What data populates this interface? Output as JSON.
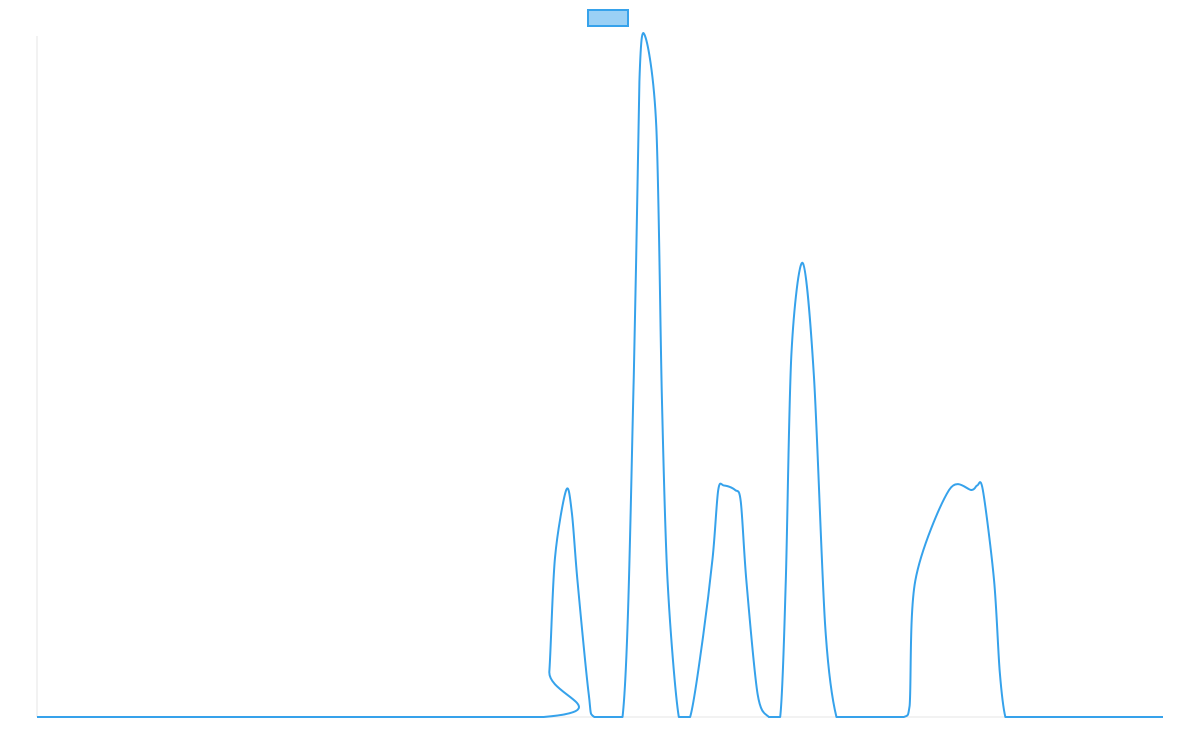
{
  "chart_data": {
    "type": "line",
    "title": "",
    "xlabel": "",
    "ylabel": "",
    "grid": false,
    "legend": {
      "position": "top-center",
      "entries": [
        {
          "label": "",
          "color": "#36A2EB",
          "fill": "#9AD0F5"
        }
      ]
    },
    "xlim": [
      0,
      100
    ],
    "ylim": [
      0,
      3
    ],
    "series": [
      {
        "color": "#36A2EB",
        "x": [
          0,
          45,
          45.5,
          46,
          47,
          47.5,
          48,
          49,
          49.5,
          52,
          53,
          53.5,
          54,
          55,
          55.5,
          56,
          57,
          58,
          59,
          60,
          60.5,
          61,
          62,
          62.5,
          63,
          64,
          65,
          66,
          66.5,
          67,
          68,
          69,
          70,
          71,
          72,
          72.5,
          73,
          74,
          74.5,
          75,
          77,
          77.5,
          78,
          81,
          83,
          83.5,
          84,
          85,
          85.5,
          86,
          86.5,
          87,
          87.5,
          88,
          92,
          100
        ],
        "y": [
          0,
          0,
          0.2,
          0.7,
          1.0,
          0.9,
          0.6,
          0.1,
          0,
          0,
          1.5,
          2.8,
          3.0,
          2.6,
          1.4,
          0.6,
          0,
          0,
          0.3,
          0.7,
          1.0,
          1.02,
          1.0,
          0.95,
          0.6,
          0.1,
          0,
          0,
          0.6,
          1.6,
          2.0,
          1.5,
          0.4,
          0,
          0,
          0,
          0,
          0,
          0,
          0,
          0,
          0.05,
          0.6,
          1.0,
          1.0,
          1.02,
          1.0,
          0.6,
          0.2,
          0,
          0,
          0,
          0,
          0,
          0,
          0
        ]
      }
    ]
  }
}
